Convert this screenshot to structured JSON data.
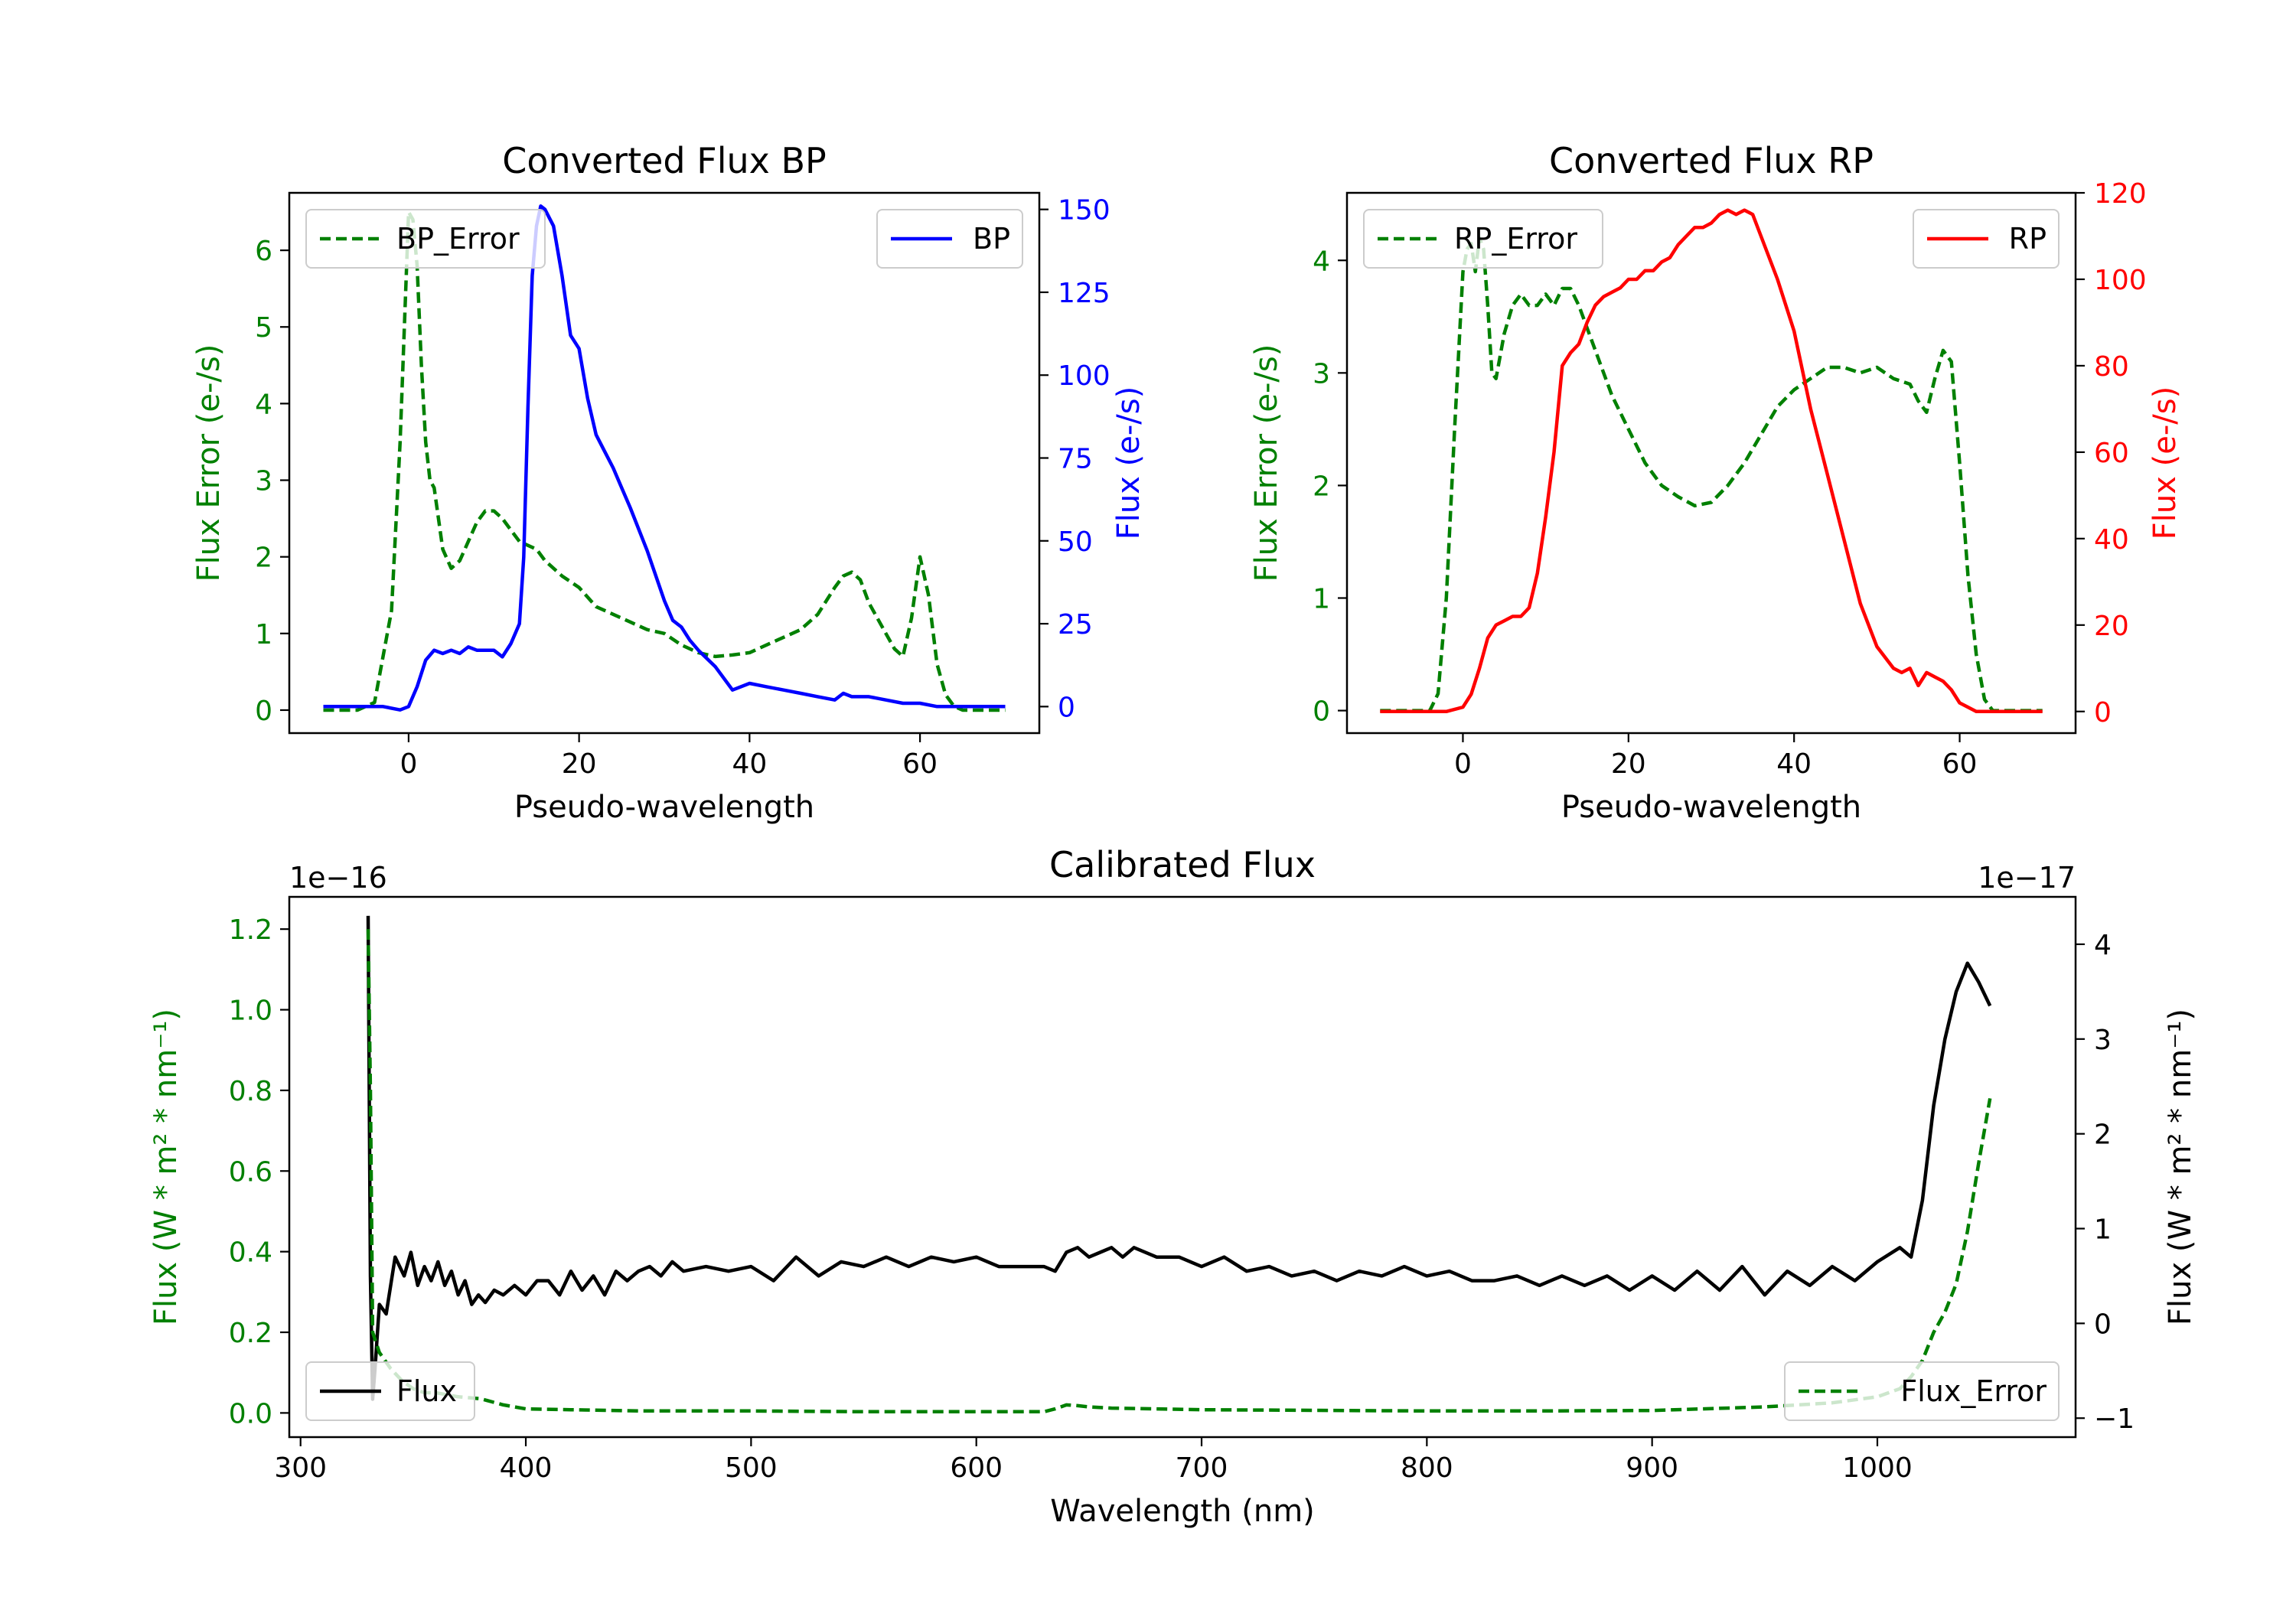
{
  "chart_data": [
    {
      "id": "bp",
      "type": "line",
      "title": "Converted Flux BP",
      "xlabel": "Pseudo-wavelength",
      "xlim": [
        -14,
        74
      ],
      "xticks": [
        0,
        20,
        40,
        60
      ],
      "left_axis": {
        "label": "Flux Error (e-/s)",
        "color": "#008000",
        "ylim": [
          -0.3,
          6.75
        ],
        "ticks": [
          0,
          1,
          2,
          3,
          4,
          5,
          6
        ]
      },
      "right_axis": {
        "label": "Flux (e-/s)",
        "color": "#0000ff",
        "ylim": [
          -8,
          155
        ],
        "ticks": [
          0,
          25,
          50,
          75,
          100,
          125,
          150
        ]
      },
      "series": [
        {
          "name": "BP_Error",
          "axis": "left",
          "color": "#008000",
          "dash": true,
          "legend": "upper left",
          "x": [
            -10,
            -6,
            -4,
            -2,
            -1,
            0,
            0.5,
            1,
            1.5,
            2,
            2.5,
            3,
            4,
            5,
            6,
            7,
            8,
            9,
            10,
            11,
            12,
            13,
            14,
            15,
            16,
            18,
            20,
            22,
            24,
            26,
            28,
            30,
            32,
            34,
            36,
            38,
            40,
            42,
            44,
            46,
            48,
            50,
            51,
            52,
            53,
            54,
            56,
            57,
            58,
            59,
            60,
            61,
            62,
            63,
            64,
            65,
            70
          ],
          "y": [
            0,
            0,
            0.1,
            1.3,
            3.5,
            6.5,
            6.4,
            5.8,
            4.5,
            3.5,
            3.0,
            2.9,
            2.1,
            1.85,
            1.95,
            2.2,
            2.45,
            2.6,
            2.6,
            2.5,
            2.35,
            2.2,
            2.15,
            2.1,
            1.95,
            1.75,
            1.6,
            1.35,
            1.25,
            1.15,
            1.05,
            1.0,
            0.85,
            0.75,
            0.7,
            0.72,
            0.75,
            0.85,
            0.95,
            1.05,
            1.25,
            1.6,
            1.75,
            1.8,
            1.7,
            1.4,
            1.0,
            0.8,
            0.7,
            1.2,
            2.0,
            1.5,
            0.6,
            0.2,
            0.05,
            0.0,
            0.0
          ]
        },
        {
          "name": "BP",
          "axis": "right",
          "color": "#0000ff",
          "dash": false,
          "legend": "upper right",
          "x": [
            -10,
            -5,
            -3,
            -1,
            0,
            1,
            2,
            3,
            4,
            5,
            6,
            7,
            8,
            9,
            10,
            11,
            12,
            13,
            13.5,
            14,
            14.5,
            15,
            15.5,
            16,
            17,
            18,
            19,
            20,
            21,
            22,
            23,
            24,
            25,
            26,
            28,
            30,
            31,
            32,
            33,
            34,
            36,
            38,
            40,
            42,
            44,
            46,
            48,
            50,
            51,
            52,
            54,
            56,
            58,
            60,
            62,
            65,
            70
          ],
          "y": [
            0,
            0,
            0,
            -1,
            0,
            6,
            14,
            17,
            16,
            17,
            16,
            18,
            17,
            17,
            17,
            15,
            19,
            25,
            45,
            90,
            130,
            145,
            151,
            150,
            145,
            130,
            112,
            108,
            93,
            82,
            77,
            72,
            66,
            60,
            47,
            32,
            26,
            24,
            20,
            17,
            12,
            5,
            7,
            6,
            5,
            4,
            3,
            2,
            4,
            3,
            3,
            2,
            1,
            1,
            0,
            0,
            0
          ]
        }
      ],
      "legend_labels": [
        "BP_Error",
        "BP"
      ]
    },
    {
      "id": "rp",
      "type": "line",
      "title": "Converted Flux RP",
      "xlabel": "Pseudo-wavelength",
      "xlim": [
        -14,
        74
      ],
      "xticks": [
        0,
        20,
        40,
        60
      ],
      "left_axis": {
        "label": "Flux Error (e-/s)",
        "color": "#008000",
        "ylim": [
          -0.2,
          4.6
        ],
        "ticks": [
          0,
          1,
          2,
          3,
          4
        ]
      },
      "right_axis": {
        "label": "Flux (e-/s)",
        "color": "#ff0000",
        "ylim": [
          -5,
          120
        ],
        "ticks": [
          0,
          20,
          40,
          60,
          80,
          100,
          120
        ]
      },
      "series": [
        {
          "name": "RP_Error",
          "axis": "left",
          "color": "#008000",
          "dash": true,
          "legend": "upper left",
          "x": [
            -10,
            -4,
            -3,
            -2,
            -1,
            0,
            0.5,
            1,
            1.5,
            2,
            2.5,
            3,
            3.5,
            4,
            5,
            6,
            7,
            8,
            9,
            10,
            11,
            12,
            13,
            14,
            16,
            18,
            20,
            22,
            24,
            26,
            28,
            30,
            32,
            34,
            36,
            38,
            40,
            42,
            44,
            46,
            48,
            50,
            52,
            54,
            55,
            56,
            57,
            58,
            59,
            60,
            61,
            62,
            63,
            64,
            65,
            70
          ],
          "y": [
            0,
            0,
            0.15,
            1.0,
            2.5,
            3.9,
            4.1,
            4.15,
            3.9,
            4.2,
            4.1,
            3.6,
            3.0,
            2.95,
            3.35,
            3.6,
            3.7,
            3.6,
            3.6,
            3.7,
            3.6,
            3.75,
            3.75,
            3.6,
            3.2,
            2.8,
            2.5,
            2.2,
            2.0,
            1.9,
            1.82,
            1.85,
            2.0,
            2.2,
            2.45,
            2.7,
            2.85,
            2.95,
            3.05,
            3.05,
            3.0,
            3.05,
            2.95,
            2.9,
            2.75,
            2.65,
            2.95,
            3.2,
            3.1,
            2.2,
            1.2,
            0.5,
            0.1,
            0.0,
            0.0,
            0.0
          ]
        },
        {
          "name": "RP",
          "axis": "right",
          "color": "#ff0000",
          "dash": false,
          "legend": "upper right",
          "x": [
            -10,
            -4,
            -2,
            0,
            1,
            2,
            3,
            4,
            5,
            6,
            7,
            8,
            9,
            10,
            11,
            12,
            13,
            14,
            15,
            16,
            17,
            18,
            19,
            20,
            21,
            22,
            23,
            24,
            25,
            26,
            27,
            28,
            29,
            30,
            31,
            32,
            33,
            34,
            35,
            36,
            38,
            40,
            42,
            44,
            46,
            48,
            50,
            52,
            53,
            54,
            55,
            56,
            57,
            58,
            59,
            60,
            62,
            65,
            70
          ],
          "y": [
            0,
            0,
            0,
            1,
            4,
            10,
            17,
            20,
            21,
            22,
            22,
            24,
            32,
            45,
            60,
            80,
            83,
            85,
            90,
            94,
            96,
            97,
            98,
            100,
            100,
            102,
            102,
            104,
            105,
            108,
            110,
            112,
            112,
            113,
            115,
            116,
            115,
            116,
            115,
            110,
            100,
            88,
            70,
            55,
            40,
            25,
            15,
            10,
            9,
            10,
            6,
            9,
            8,
            7,
            5,
            2,
            0,
            0,
            0
          ]
        }
      ],
      "legend_labels": [
        "RP_Error",
        "RP"
      ]
    },
    {
      "id": "cal",
      "type": "line",
      "title": "Calibrated Flux",
      "xlabel": "Wavelength (nm)",
      "xlim": [
        295,
        1088
      ],
      "xticks": [
        300,
        400,
        500,
        600,
        700,
        800,
        900,
        1000
      ],
      "left_axis": {
        "label": "Flux (W * m² * nm⁻¹)",
        "color": "#008000",
        "ylim": [
          -0.06,
          1.28
        ],
        "ticks": [
          0.0,
          0.2,
          0.4,
          0.6,
          0.8,
          1.0,
          1.2
        ],
        "tick_labels": [
          "0.0",
          "0.2",
          "0.4",
          "0.6",
          "0.8",
          "1.0",
          "1.2"
        ],
        "offset_text": "1e−16"
      },
      "right_axis": {
        "label": "Flux (W * m² * nm⁻¹)",
        "color": "#000000",
        "ylim": [
          -1.2,
          4.5
        ],
        "ticks": [
          -1,
          0,
          1,
          2,
          3,
          4
        ],
        "tick_labels": [
          "−1",
          "0",
          "1",
          "2",
          "3",
          "4"
        ],
        "offset_text": "1e−17"
      },
      "series": [
        {
          "name": "Flux",
          "axis": "right",
          "color": "#000000",
          "dash": false,
          "legend": "lower left",
          "x": [
            330,
            331,
            332,
            333,
            335,
            338,
            342,
            346,
            349,
            352,
            355,
            358,
            361,
            364,
            367,
            370,
            373,
            376,
            379,
            382,
            386,
            390,
            395,
            400,
            405,
            410,
            415,
            420,
            425,
            430,
            435,
            440,
            445,
            450,
            455,
            460,
            465,
            470,
            480,
            490,
            500,
            510,
            520,
            530,
            540,
            550,
            560,
            570,
            580,
            590,
            600,
            610,
            620,
            630,
            635,
            640,
            645,
            650,
            655,
            660,
            665,
            670,
            680,
            690,
            700,
            710,
            720,
            730,
            740,
            750,
            760,
            770,
            780,
            790,
            800,
            810,
            820,
            830,
            840,
            850,
            860,
            870,
            880,
            890,
            900,
            910,
            920,
            930,
            940,
            950,
            960,
            970,
            980,
            990,
            1000,
            1010,
            1015,
            1020,
            1025,
            1030,
            1035,
            1040,
            1045,
            1050
          ],
          "y": [
            4.3,
            0.5,
            -0.8,
            -0.5,
            0.2,
            0.1,
            0.7,
            0.5,
            0.75,
            0.4,
            0.6,
            0.45,
            0.65,
            0.4,
            0.55,
            0.3,
            0.45,
            0.2,
            0.3,
            0.22,
            0.35,
            0.3,
            0.4,
            0.3,
            0.45,
            0.45,
            0.3,
            0.55,
            0.35,
            0.5,
            0.3,
            0.55,
            0.45,
            0.55,
            0.6,
            0.5,
            0.65,
            0.55,
            0.6,
            0.55,
            0.6,
            0.45,
            0.7,
            0.5,
            0.65,
            0.6,
            0.7,
            0.6,
            0.7,
            0.65,
            0.7,
            0.6,
            0.6,
            0.6,
            0.55,
            0.75,
            0.8,
            0.7,
            0.75,
            0.8,
            0.7,
            0.8,
            0.7,
            0.7,
            0.6,
            0.7,
            0.55,
            0.6,
            0.5,
            0.55,
            0.45,
            0.55,
            0.5,
            0.6,
            0.5,
            0.55,
            0.45,
            0.45,
            0.5,
            0.4,
            0.5,
            0.4,
            0.5,
            0.35,
            0.5,
            0.35,
            0.55,
            0.35,
            0.6,
            0.3,
            0.55,
            0.4,
            0.6,
            0.45,
            0.65,
            0.8,
            0.7,
            1.3,
            2.3,
            3.0,
            3.5,
            3.8,
            3.6,
            3.35
          ]
        },
        {
          "name": "Flux_Error",
          "axis": "left",
          "color": "#008000",
          "dash": true,
          "legend": "lower right",
          "x": [
            330,
            331,
            332,
            335,
            340,
            345,
            350,
            355,
            360,
            370,
            380,
            390,
            400,
            420,
            450,
            500,
            550,
            600,
            630,
            635,
            640,
            645,
            650,
            660,
            700,
            800,
            850,
            900,
            950,
            980,
            1000,
            1010,
            1015,
            1020,
            1025,
            1030,
            1035,
            1040,
            1045,
            1050
          ],
          "y": [
            1.2,
            0.8,
            0.2,
            0.15,
            0.11,
            0.08,
            0.06,
            0.05,
            0.05,
            0.04,
            0.035,
            0.02,
            0.01,
            0.008,
            0.005,
            0.005,
            0.003,
            0.003,
            0.003,
            0.01,
            0.02,
            0.018,
            0.015,
            0.012,
            0.008,
            0.005,
            0.005,
            0.006,
            0.015,
            0.025,
            0.04,
            0.06,
            0.09,
            0.13,
            0.2,
            0.25,
            0.32,
            0.45,
            0.62,
            0.78
          ]
        }
      ],
      "legend_labels": [
        "Flux",
        "Flux_Error"
      ]
    }
  ]
}
